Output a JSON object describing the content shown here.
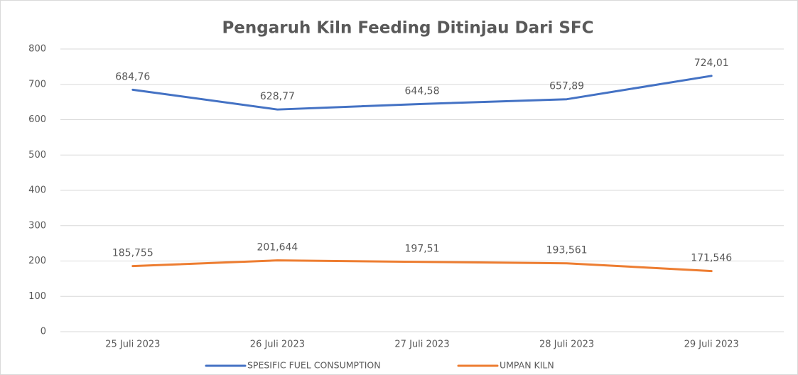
{
  "chart_data": {
    "type": "line",
    "title": "Pengaruh Kiln Feeding Ditinjau Dari SFC",
    "categories": [
      "25 Juli 2023",
      "26 Juli 2023",
      "27 Juli 2023",
      "28 Juli 2023",
      "29 Juli 2023"
    ],
    "series": [
      {
        "name": "SPESIFIC FUEL CONSUMPTION",
        "color": "#4472c4",
        "values": [
          684.76,
          628.77,
          644.58,
          657.89,
          724.01
        ],
        "value_labels": [
          "684,76",
          "628,77",
          "644,58",
          "657,89",
          "724,01"
        ]
      },
      {
        "name": "UMPAN KILN",
        "color": "#ed7d31",
        "values": [
          185.755,
          201.644,
          197.51,
          193.561,
          171.546
        ],
        "value_labels": [
          "185,755",
          "201,644",
          "197,51",
          "193,561",
          "171,546"
        ]
      }
    ],
    "ylim": [
      0,
      800
    ],
    "yticks": [
      0,
      100,
      200,
      300,
      400,
      500,
      600,
      700,
      800
    ],
    "grid": true,
    "legend": "bottom"
  }
}
